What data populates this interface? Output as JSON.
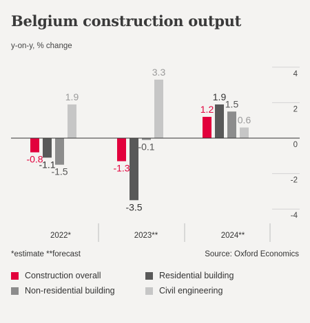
{
  "title": "Belgium construction output",
  "subtitle": "y-on-y, % change",
  "footer": {
    "note": "*estimate  **forecast",
    "source": "Source: Oxford Economics"
  },
  "colors": {
    "construction_overall": "#e2003c",
    "residential_building": "#595959",
    "non_residential_building": "#8c8c8c",
    "civil_engineering": "#c6c6c6"
  },
  "chart_data": {
    "type": "bar",
    "title": "Belgium construction output",
    "ylabel": "y-on-y, % change",
    "categories": [
      "2022*",
      "2023**",
      "2024**"
    ],
    "series": [
      {
        "name": "Construction overall",
        "values": [
          -0.8,
          -1.3,
          1.2
        ],
        "labels": [
          "-0.8",
          "-1.3",
          "1.2"
        ]
      },
      {
        "name": "Residential building",
        "values": [
          -1.1,
          -3.5,
          1.9
        ],
        "labels": [
          "-1.1",
          "-3.5",
          "1.9"
        ]
      },
      {
        "name": "Non-residential building",
        "values": [
          -1.5,
          -0.1,
          1.5
        ],
        "labels": [
          "-1.5",
          "-0.1",
          "1.5"
        ]
      },
      {
        "name": "Civil engineering",
        "values": [
          1.9,
          3.3,
          0.6
        ],
        "labels": [
          "1.9",
          "3.3",
          "0.6"
        ]
      }
    ],
    "ylim": [
      -4,
      4
    ],
    "yticks": [
      4,
      2,
      0,
      -2,
      -4
    ],
    "ytick_labels": [
      "4",
      "2",
      "0",
      "-2",
      "-4"
    ],
    "grid": true,
    "legend_position": "bottom"
  }
}
